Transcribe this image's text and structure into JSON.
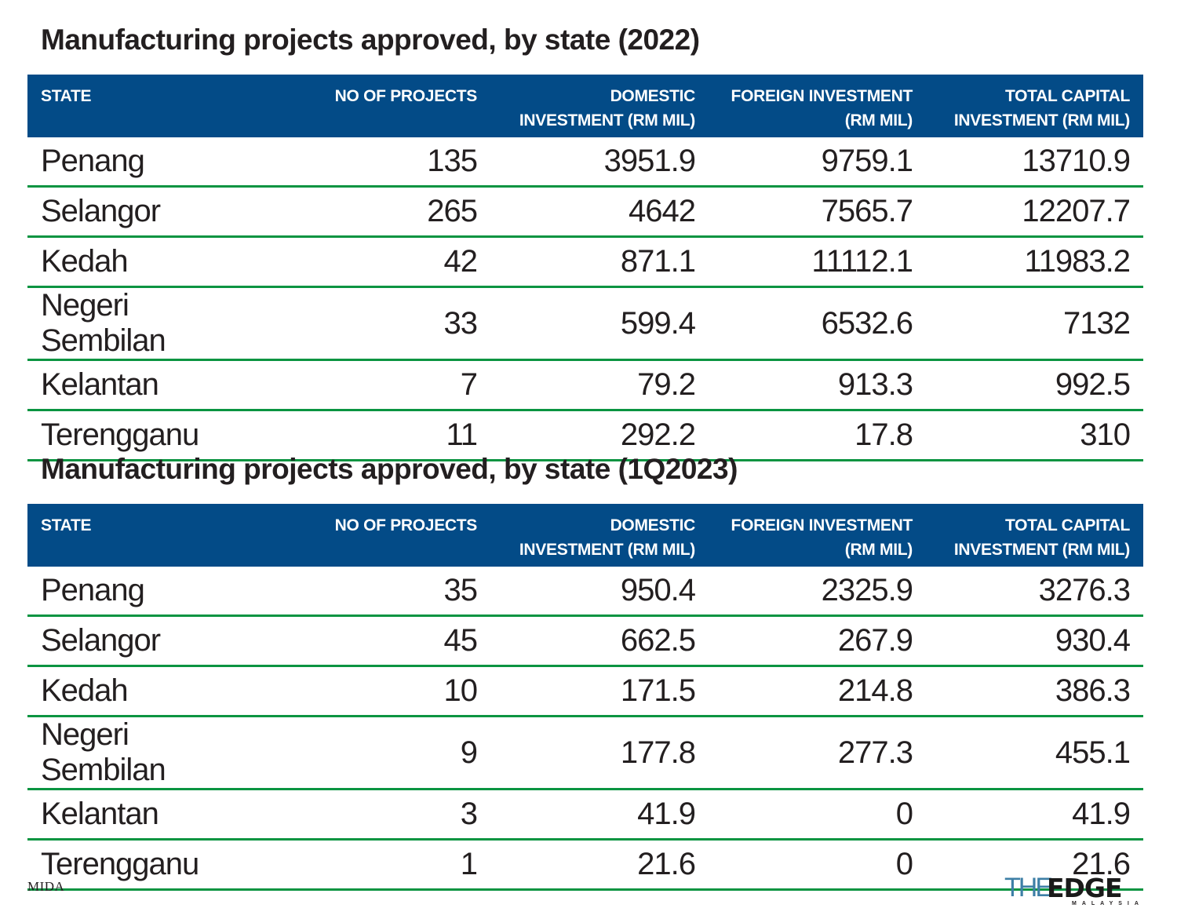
{
  "chart_data": [
    {
      "type": "table",
      "title": "Manufacturing projects approved, by state (2022)",
      "columns": [
        "STATE",
        "NO OF PROJECTS",
        "DOMESTIC INVESTMENT (RM MIL)",
        "FOREIGN INVESTMENT (RM MIL)",
        "TOTAL CAPITAL INVESTMENT (RM MIL)"
      ],
      "rows": [
        [
          "Penang",
          "135",
          "3951.9",
          "9759.1",
          "13710.9"
        ],
        [
          "Selangor",
          "265",
          "4642",
          "7565.7",
          "12207.7"
        ],
        [
          "Kedah",
          "42",
          "871.1",
          "11112.1",
          "11983.2"
        ],
        [
          "Negeri Sembilan",
          "33",
          "599.4",
          "6532.6",
          "7132"
        ],
        [
          "Kelantan",
          "7",
          "79.2",
          "913.3",
          "992.5"
        ],
        [
          "Terengganu",
          "11",
          "292.2",
          "17.8",
          "310"
        ]
      ]
    },
    {
      "type": "table",
      "title": "Manufacturing projects approved, by state (1Q2023)",
      "columns": [
        "STATE",
        "NO OF PROJECTS",
        "DOMESTIC INVESTMENT (RM MIL)",
        "FOREIGN INVESTMENT (RM MIL)",
        "TOTAL CAPITAL INVESTMENT (RM MIL)"
      ],
      "rows": [
        [
          "Penang",
          "35",
          "950.4",
          "2325.9",
          "3276.3"
        ],
        [
          "Selangor",
          "45",
          "662.5",
          "267.9",
          "930.4"
        ],
        [
          "Kedah",
          "10",
          "171.5",
          "214.8",
          "386.3"
        ],
        [
          "Negeri Sembilan",
          "9",
          "177.8",
          "277.3",
          "455.1"
        ],
        [
          "Kelantan",
          "3",
          "41.9",
          "0",
          "41.9"
        ],
        [
          "Terengganu",
          "1",
          "21.6",
          "0",
          "21.6"
        ]
      ]
    }
  ],
  "header_lines": [
    [
      "STATE"
    ],
    [
      "NO OF PROJECTS"
    ],
    [
      "DOMESTIC",
      "INVESTMENT (RM MIL)"
    ],
    [
      "FOREIGN INVESTMENT",
      "(RM MIL)"
    ],
    [
      "TOTAL CAPITAL",
      "INVESTMENT (RM MIL)"
    ]
  ],
  "source": "MIDA",
  "logo": {
    "the": "THE",
    "edge": "EDGE",
    "sub": "MALAYSIA"
  },
  "colors": {
    "header_bg": "#034b87",
    "row_rule": "#0a9441",
    "logo_the": "#3d7fa6"
  }
}
